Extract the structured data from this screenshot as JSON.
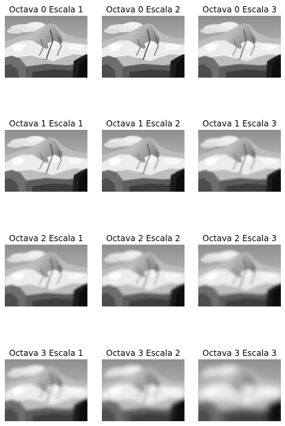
{
  "figure": {
    "panels": [
      {
        "title": "Octava 0 Escala 1",
        "blur": 0.15
      },
      {
        "title": "Octava 0 Escala 2",
        "blur": 0.25
      },
      {
        "title": "Octava 0 Escala 3",
        "blur": 0.4
      },
      {
        "title": "Octava 1 Escala 1",
        "blur": 0.6
      },
      {
        "title": "Octava 1 Escala 2",
        "blur": 0.8
      },
      {
        "title": "Octava 1 Escala 3",
        "blur": 1.0
      },
      {
        "title": "Octava 2 Escala 1",
        "blur": 1.2
      },
      {
        "title": "Octava 2 Escala 2",
        "blur": 1.5
      },
      {
        "title": "Octava 2 Escala 3",
        "blur": 1.8
      },
      {
        "title": "Octava 3 Escala 1",
        "blur": 2.2
      },
      {
        "title": "Octava 3 Escala 2",
        "blur": 3.0
      },
      {
        "title": "Octava 3 Escala 3",
        "blur": 4.2
      }
    ],
    "image_style": "grayscale",
    "subject": "snowy granite mountain face (Half Dome-like) under a pale sky"
  }
}
